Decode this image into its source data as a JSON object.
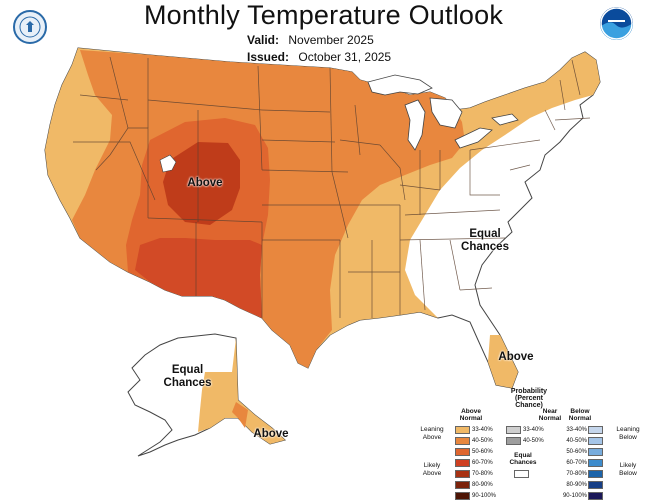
{
  "title": "Monthly Temperature Outlook",
  "valid_label": "Valid:",
  "valid_value": "November 2025",
  "issued_label": "Issued:",
  "issued_value": "October 31, 2025",
  "logos": {
    "left": "doc-seal",
    "right": "noaa-logo"
  },
  "map_labels": {
    "above_west": "Above",
    "equal_east": "Equal\nChances",
    "above_florida": "Above",
    "equal_alaska": "Equal\nChances",
    "above_alaska": "Above"
  },
  "legend": {
    "title": "Probability\n(Percent Chance)",
    "above_header": "Above\nNormal",
    "near_header": "Near\nNormal",
    "below_header": "Below\nNormal",
    "leaning_above": "Leaning\nAbove",
    "likely_above": "Likely\nAbove",
    "leaning_below": "Leaning\nBelow",
    "likely_below": "Likely\nBelow",
    "equal_chances": "Equal\nChances",
    "above": [
      {
        "range": "33-40%",
        "color": "#f0b967"
      },
      {
        "range": "40-50%",
        "color": "#e8873e"
      },
      {
        "range": "50-60%",
        "color": "#e0662f"
      },
      {
        "range": "60-70%",
        "color": "#cf4022"
      },
      {
        "range": "70-80%",
        "color": "#a83213"
      },
      {
        "range": "80-90%",
        "color": "#7c230b"
      },
      {
        "range": "90-100%",
        "color": "#4d1505"
      }
    ],
    "near": [
      {
        "range": "33-40%",
        "color": "#cfcfcf"
      },
      {
        "range": "40-50%",
        "color": "#9e9e9e"
      }
    ],
    "below": [
      {
        "range": "33-40%",
        "color": "#c5d6ec"
      },
      {
        "range": "40-50%",
        "color": "#a5c5e8"
      },
      {
        "range": "50-60%",
        "color": "#78acdc"
      },
      {
        "range": "60-70%",
        "color": "#3e8ccc"
      },
      {
        "range": "70-80%",
        "color": "#1c64aa"
      },
      {
        "range": "80-90%",
        "color": "#173f86"
      },
      {
        "range": "90-100%",
        "color": "#1b1858"
      }
    ]
  },
  "colors": {
    "light_orange": "#f0b967",
    "orange": "#e8873e",
    "dark_orange": "#e0662f",
    "red": "#cf4022",
    "dark_red": "#a83213",
    "state_line": "#5a4030",
    "water": "#ffffff"
  }
}
